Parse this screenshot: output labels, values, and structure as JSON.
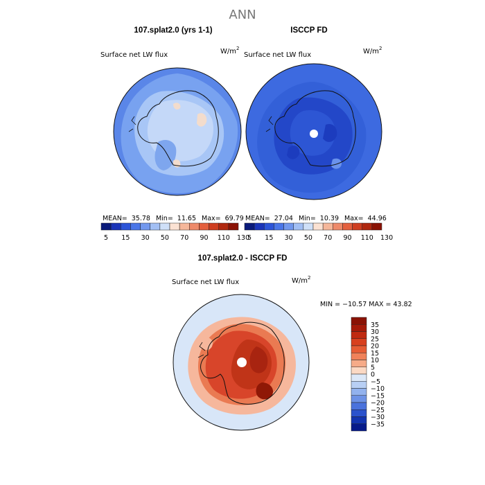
{
  "page_title": "ANN",
  "units": "W/m",
  "units_exp": "2",
  "panels": [
    {
      "id": "model",
      "title": "107.splat2.0 (yrs 1-1)",
      "variable": "Surface net LW flux",
      "stats": {
        "mean_label": "MEAN=",
        "mean": "35.78",
        "min_label": "Min=",
        "min": "11.65",
        "max_label": "Max=",
        "max": "69.79"
      }
    },
    {
      "id": "obs",
      "title": "ISCCP FD",
      "variable": "Surface net LW flux",
      "stats": {
        "mean_label": "MEAN=",
        "mean": "27.04",
        "min_label": "Min=",
        "min": "10.39",
        "max_label": "Max=",
        "max": "44.96"
      }
    }
  ],
  "abs_colorbar": {
    "ticks": [
      "5",
      "15",
      "30",
      "50",
      "70",
      "90",
      "110",
      "130"
    ],
    "colors": [
      "#0a1a7a",
      "#1a34b8",
      "#2c54d8",
      "#4a76e8",
      "#7298ee",
      "#a2bff4",
      "#cfe0f8",
      "#fbe2d3",
      "#f5b79a",
      "#ee8a6a",
      "#e4603e",
      "#cf3e20",
      "#b0280f",
      "#8a1204"
    ]
  },
  "diff_panel": {
    "title": "107.splat2.0 - ISCCP FD",
    "variable": "Surface net LW flux",
    "stats_text": "MIN = −10.57 MAX =   43.82"
  },
  "diff_colorbar": {
    "labels": [
      "35",
      "30",
      "25",
      "20",
      "15",
      "10",
      "5",
      "0",
      "−5",
      "−10",
      "−15",
      "−20",
      "−25",
      "−30",
      "−35"
    ],
    "colors": [
      "#8a1204",
      "#a51a08",
      "#c02a10",
      "#d8401e",
      "#e65c34",
      "#f0825a",
      "#f6ab88",
      "#fbd9c4",
      "#dce8f8",
      "#b8cff4",
      "#92b2ee",
      "#6d92e6",
      "#4a72dc",
      "#2a52cc",
      "#1234b0",
      "#061a8a"
    ]
  }
}
